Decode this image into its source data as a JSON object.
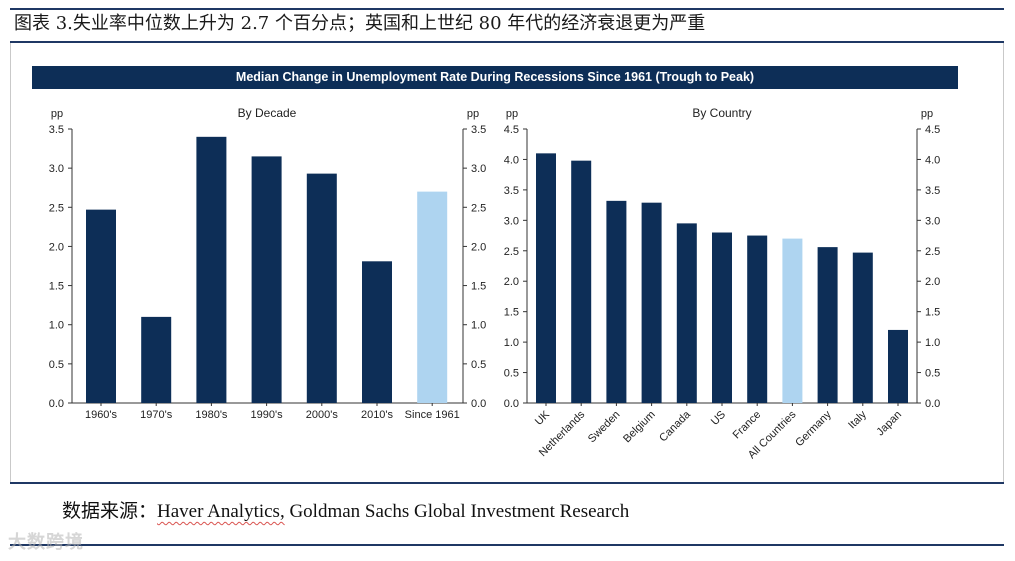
{
  "header": {
    "title": "图表 3.失业率中位数上升为 2.7 个百分点；英国和上世纪 80 年代的经济衰退更为严重"
  },
  "banner": {
    "title": "Median Change in Unemployment Rate During Recessions Since 1961 (Trough to Peak)"
  },
  "source": {
    "prefix": "数据来源：",
    "underlined": "Haver Analytics,",
    "rest": " Goldman Sachs Global Investment Research"
  },
  "watermark": {
    "text": "大数跨境"
  },
  "colors": {
    "dark": "#0d2e57",
    "highlight": "#aed4f0"
  },
  "chart_data": [
    {
      "type": "bar",
      "title": "By Decade",
      "ylabel": "pp",
      "ylabel_right": "pp",
      "ylim": [
        0,
        3.5
      ],
      "yticks": [
        0.0,
        0.5,
        1.0,
        1.5,
        2.0,
        2.5,
        3.0,
        3.5
      ],
      "tick_labels": [
        "0.0",
        "0.5",
        "1.0",
        "1.5",
        "2.0",
        "2.5",
        "3.0",
        "3.5"
      ],
      "categories": [
        "1960's",
        "1970's",
        "1980's",
        "1990's",
        "2000's",
        "2010's",
        "Since 1961"
      ],
      "values": [
        2.47,
        1.1,
        3.4,
        3.15,
        2.93,
        1.81,
        2.7
      ],
      "highlight_index": 6,
      "grid": false
    },
    {
      "type": "bar",
      "title": "By Country",
      "ylabel": "pp",
      "ylabel_right": "pp",
      "ylim": [
        0,
        4.5
      ],
      "yticks": [
        0.0,
        0.5,
        1.0,
        1.5,
        2.0,
        2.5,
        3.0,
        3.5,
        4.0,
        4.5
      ],
      "tick_labels": [
        "0.0",
        "0.5",
        "1.0",
        "1.5",
        "2.0",
        "2.5",
        "3.0",
        "3.5",
        "4.0",
        "4.5"
      ],
      "categories": [
        "UK",
        "Netherlands",
        "Sweden",
        "Belgium",
        "Canada",
        "US",
        "France",
        "All Countries",
        "Germany",
        "Italy",
        "Japan"
      ],
      "values": [
        4.1,
        3.98,
        3.32,
        3.29,
        2.95,
        2.8,
        2.75,
        2.7,
        2.56,
        2.47,
        1.2
      ],
      "highlight_index": 7,
      "grid": false
    }
  ]
}
